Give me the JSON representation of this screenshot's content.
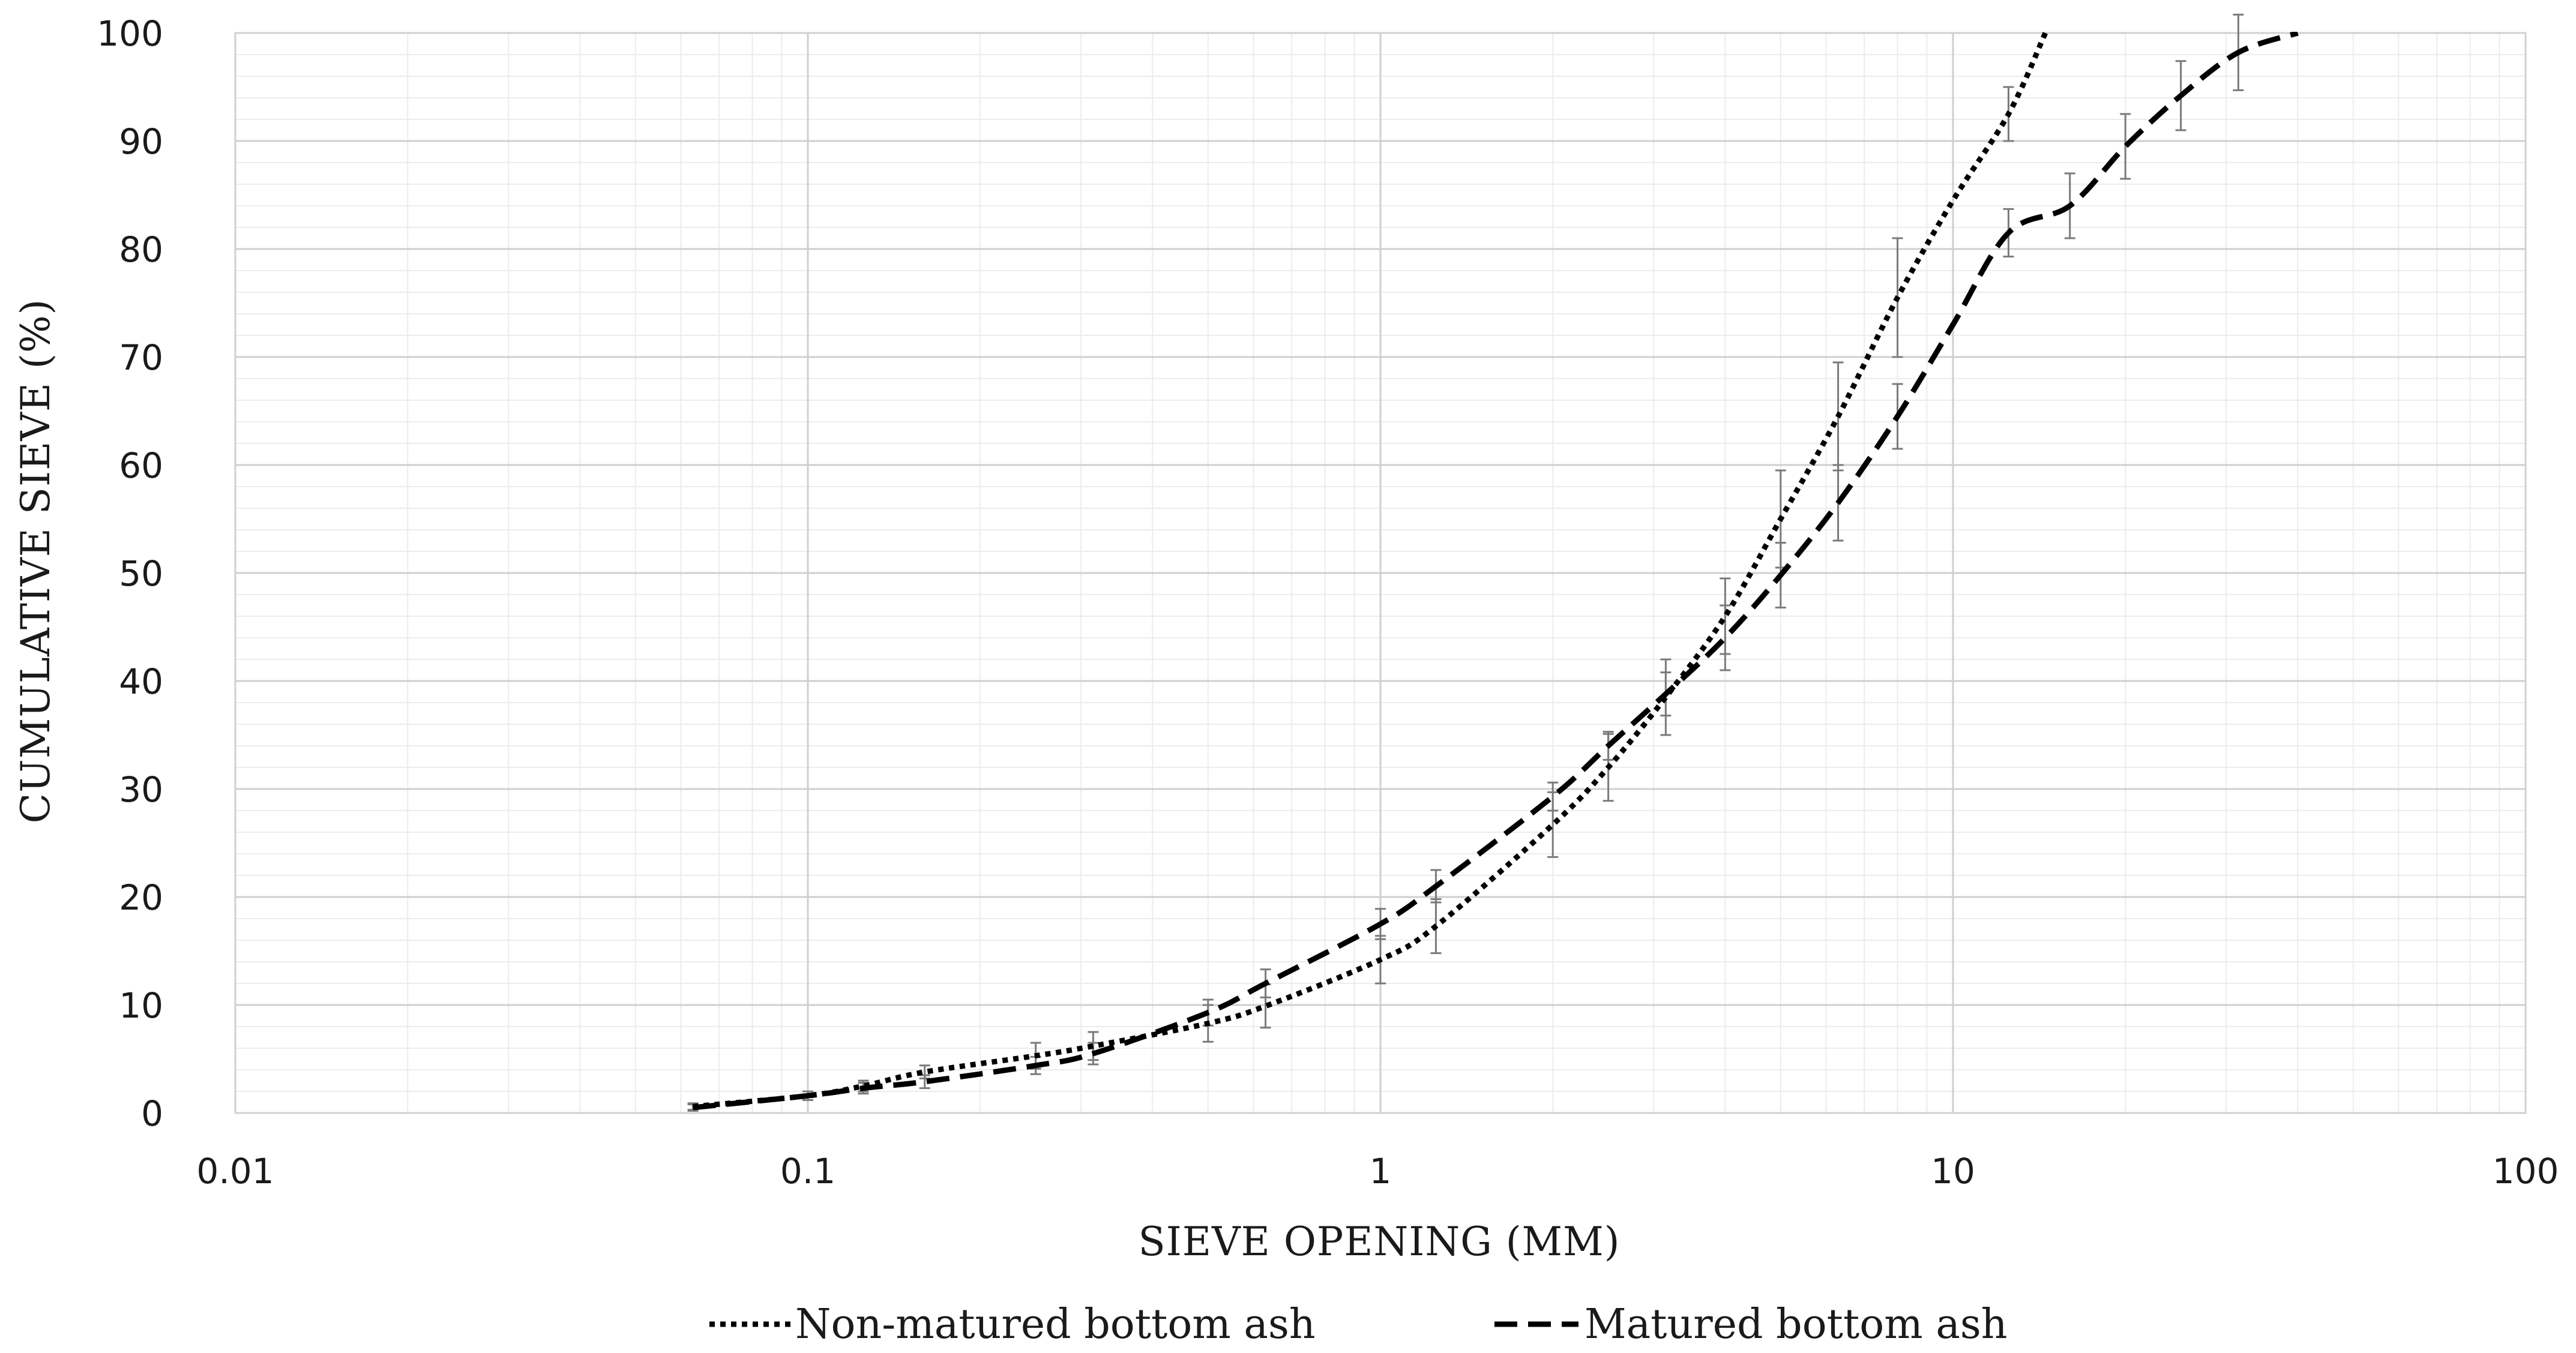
{
  "chart_data": {
    "type": "line",
    "title": "",
    "xlabel": "SIEVE OPENING (MM)",
    "ylabel": "CUMULATIVE SIEVE (%)",
    "xscale": "log",
    "xlim": [
      0.01,
      100
    ],
    "ylim": [
      0,
      100
    ],
    "x_ticks": [
      "0.01",
      "0.1",
      "1",
      "10",
      "100"
    ],
    "y_ticks": [
      "0",
      "10",
      "20",
      "30",
      "40",
      "50",
      "60",
      "70",
      "80",
      "90",
      "100"
    ],
    "grid": true,
    "legend_position": "bottom",
    "series": [
      {
        "name": "Non-matured bottom ash",
        "style": "dotted",
        "color": "#000000",
        "points": [
          {
            "x": 0.063,
            "y": 0.6,
            "err": 0.3
          },
          {
            "x": 0.1,
            "y": 1.6,
            "err": 0.4
          },
          {
            "x": 0.125,
            "y": 2.5,
            "err": 0.5
          },
          {
            "x": 0.16,
            "y": 3.8,
            "err": 0.6
          },
          {
            "x": 0.25,
            "y": 5.3,
            "err": 1.2
          },
          {
            "x": 0.315,
            "y": 6.2,
            "err": 1.3
          },
          {
            "x": 0.5,
            "y": 8.3,
            "err": 1.7
          },
          {
            "x": 0.63,
            "y": 9.9,
            "err": 2.0
          },
          {
            "x": 1.0,
            "y": 14.2,
            "err": 2.2
          },
          {
            "x": 1.25,
            "y": 17.3,
            "err": 2.5
          },
          {
            "x": 2.0,
            "y": 26.7,
            "err": 3.0
          },
          {
            "x": 2.5,
            "y": 32.0,
            "err": 3.1
          },
          {
            "x": 3.15,
            "y": 38.5,
            "err": 3.5
          },
          {
            "x": 4.0,
            "y": 46.0,
            "err": 3.5
          },
          {
            "x": 5.0,
            "y": 55.0,
            "err": 4.5
          },
          {
            "x": 6.3,
            "y": 64.5,
            "err": 5.0
          },
          {
            "x": 8.0,
            "y": 75.5,
            "err": 5.5
          },
          {
            "x": 10.0,
            "y": 84.5
          },
          {
            "x": 12.5,
            "y": 92.5,
            "err": 2.5
          },
          {
            "x": 14.5,
            "y": 100
          }
        ]
      },
      {
        "name": "Matured bottom ash",
        "style": "dashed",
        "color": "#000000",
        "points": [
          {
            "x": 0.063,
            "y": 0.5,
            "err": 0.3
          },
          {
            "x": 0.1,
            "y": 1.6,
            "err": 0.4
          },
          {
            "x": 0.125,
            "y": 2.3,
            "err": 0.5
          },
          {
            "x": 0.16,
            "y": 2.9,
            "err": 0.6
          },
          {
            "x": 0.25,
            "y": 4.4,
            "err": 0.8
          },
          {
            "x": 0.315,
            "y": 5.5,
            "err": 1.0
          },
          {
            "x": 0.5,
            "y": 9.3,
            "err": 1.2
          },
          {
            "x": 0.63,
            "y": 12.0,
            "err": 1.3
          },
          {
            "x": 1.0,
            "y": 17.5,
            "err": 1.4
          },
          {
            "x": 1.25,
            "y": 21.0,
            "err": 1.5
          },
          {
            "x": 2.0,
            "y": 29.3,
            "err": 1.3
          },
          {
            "x": 2.5,
            "y": 34.0,
            "err": 1.3
          },
          {
            "x": 3.15,
            "y": 38.8,
            "err": 2.0
          },
          {
            "x": 4.0,
            "y": 44.0,
            "err": 3.0
          },
          {
            "x": 5.0,
            "y": 49.8,
            "err": 3.0
          },
          {
            "x": 6.3,
            "y": 56.5,
            "err": 3.5
          },
          {
            "x": 8.0,
            "y": 64.5,
            "err": 3.0
          },
          {
            "x": 10.0,
            "y": 73.0
          },
          {
            "x": 12.5,
            "y": 81.5,
            "err": 2.2
          },
          {
            "x": 16.0,
            "y": 84.0,
            "err": 3.0
          },
          {
            "x": 20.0,
            "y": 89.5,
            "err": 3.0
          },
          {
            "x": 25.0,
            "y": 94.2,
            "err": 3.2
          },
          {
            "x": 31.5,
            "y": 98.2,
            "err": 3.5
          },
          {
            "x": 40.0,
            "y": 100
          }
        ]
      }
    ]
  }
}
